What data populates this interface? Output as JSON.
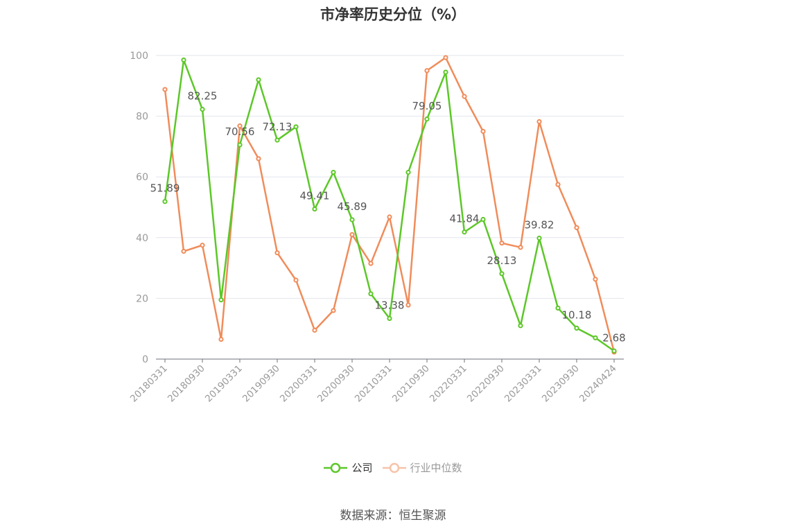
{
  "chart_data": {
    "type": "line",
    "title": "市净率历史分位（%）",
    "xlabel": "",
    "ylabel": "",
    "ylim": [
      0,
      100
    ],
    "yticks": [
      0,
      20,
      40,
      60,
      80,
      100
    ],
    "grid": true,
    "legend_position": "bottom",
    "x": [
      "20180331",
      "20180630",
      "20180930",
      "20181231",
      "20190331",
      "20190630",
      "20190930",
      "20191231",
      "20200331",
      "20200630",
      "20200930",
      "20201231",
      "20210331",
      "20210630",
      "20210930",
      "20211231",
      "20220331",
      "20220630",
      "20220930",
      "20221231",
      "20230331",
      "20230630",
      "20230930",
      "20231231",
      "20240424"
    ],
    "xtick_labels": [
      "20180331",
      "20180930",
      "20190331",
      "20190930",
      "20200331",
      "20200930",
      "20210331",
      "20210930",
      "20220331",
      "20220930",
      "20230331",
      "20230930",
      "20240424"
    ],
    "series": [
      {
        "name": "公司",
        "color": "#5cc728",
        "values": [
          51.89,
          98.5,
          82.25,
          19.5,
          70.56,
          92.0,
          72.13,
          76.5,
          49.41,
          61.5,
          45.89,
          21.5,
          13.38,
          61.5,
          79.05,
          94.5,
          41.84,
          46.0,
          28.13,
          11.0,
          39.82,
          16.8,
          10.18,
          7.0,
          2.68
        ],
        "data_labels": [
          {
            "index": 0,
            "text": "51.89"
          },
          {
            "index": 2,
            "text": "82.25"
          },
          {
            "index": 4,
            "text": "70.56"
          },
          {
            "index": 6,
            "text": "72.13"
          },
          {
            "index": 8,
            "text": "49.41"
          },
          {
            "index": 10,
            "text": "45.89"
          },
          {
            "index": 12,
            "text": "13.38"
          },
          {
            "index": 14,
            "text": "79.05"
          },
          {
            "index": 16,
            "text": "41.84"
          },
          {
            "index": 18,
            "text": "28.13"
          },
          {
            "index": 20,
            "text": "39.82"
          },
          {
            "index": 22,
            "text": "10.18"
          },
          {
            "index": 24,
            "text": "2.68"
          }
        ]
      },
      {
        "name": "行业中位数",
        "color": "#f08c5a",
        "values": [
          88.8,
          35.5,
          37.5,
          6.5,
          76.8,
          66.0,
          35.0,
          26.0,
          9.5,
          16.0,
          41.0,
          31.5,
          46.8,
          17.8,
          95.0,
          99.3,
          86.5,
          75.0,
          38.2,
          36.8,
          78.2,
          57.5,
          43.3,
          26.3,
          2.3
        ]
      }
    ]
  },
  "legend": {
    "items": [
      {
        "label": "公司"
      },
      {
        "label": "行业中位数"
      }
    ]
  },
  "source": "数据来源：恒生聚源"
}
